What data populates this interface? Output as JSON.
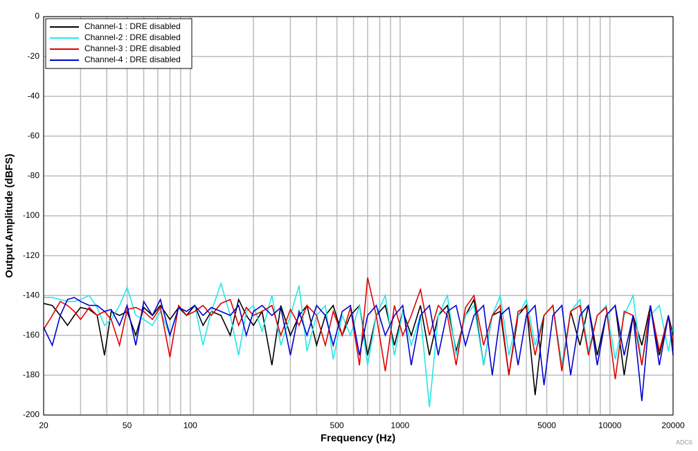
{
  "chart_data": {
    "type": "line",
    "xlabel": "Frequency (Hz)",
    "ylabel": "Output Amplitude (dBFS)",
    "footnote": "ADC6",
    "xscale": "log",
    "xlim": [
      20,
      20000
    ],
    "ylim": [
      -200,
      0
    ],
    "xticks": [
      20,
      50,
      100,
      500,
      1000,
      5000,
      10000,
      20000
    ],
    "xminor": [
      30,
      40,
      60,
      70,
      80,
      90,
      200,
      300,
      400,
      600,
      700,
      800,
      900,
      2000,
      3000,
      4000,
      6000,
      7000,
      8000,
      9000
    ],
    "yticks": [
      0,
      -20,
      -40,
      -60,
      -80,
      -100,
      -120,
      -140,
      -160,
      -180,
      -200
    ],
    "grid": true,
    "legend": "upper-left",
    "x": [
      20,
      22,
      24,
      26,
      28,
      30,
      33,
      36,
      39,
      42,
      46,
      50,
      55,
      60,
      66,
      72,
      80,
      88,
      96,
      105,
      115,
      126,
      140,
      155,
      170,
      185,
      200,
      220,
      245,
      270,
      300,
      330,
      360,
      400,
      440,
      480,
      530,
      580,
      640,
      700,
      770,
      850,
      940,
      1030,
      1130,
      1250,
      1380,
      1520,
      1680,
      1850,
      2050,
      2250,
      2500,
      2750,
      3000,
      3300,
      3650,
      4000,
      4400,
      4850,
      5350,
      5900,
      6500,
      7200,
      7900,
      8700,
      9600,
      10600,
      11700,
      12900,
      14200,
      15600,
      17200,
      19000,
      20000
    ],
    "series": [
      {
        "name": "Channel-1 : DRE disabled",
        "color": "#000000",
        "values": [
          -144,
          -145,
          -150,
          -155,
          -150,
          -146,
          -147,
          -150,
          -170,
          -148,
          -150,
          -148,
          -160,
          -146,
          -150,
          -145,
          -152,
          -146,
          -150,
          -145,
          -155,
          -148,
          -150,
          -160,
          -142,
          -150,
          -155,
          -148,
          -175,
          -145,
          -160,
          -150,
          -145,
          -165,
          -150,
          -145,
          -160,
          -150,
          -145,
          -170,
          -150,
          -145,
          -165,
          -148,
          -160,
          -145,
          -170,
          -150,
          -145,
          -168,
          -150,
          -142,
          -175,
          -150,
          -148,
          -180,
          -150,
          -145,
          -190,
          -150,
          -145,
          -175,
          -148,
          -165,
          -145,
          -170,
          -150,
          -145,
          -180,
          -150,
          -165,
          -145,
          -170,
          -150,
          -160
        ]
      },
      {
        "name": "Channel-2 : DRE disabled",
        "color": "#22e8e8",
        "values": [
          -141,
          -141,
          -142,
          -143,
          -143,
          -142,
          -140,
          -146,
          -155,
          -152,
          -145,
          -136,
          -150,
          -152,
          -155,
          -148,
          -160,
          -146,
          -148,
          -145,
          -165,
          -148,
          -134,
          -150,
          -170,
          -148,
          -145,
          -158,
          -140,
          -165,
          -150,
          -135,
          -168,
          -150,
          -145,
          -172,
          -150,
          -160,
          -145,
          -175,
          -150,
          -140,
          -170,
          -148,
          -165,
          -150,
          -196,
          -150,
          -140,
          -170,
          -150,
          -145,
          -175,
          -150,
          -140,
          -170,
          -150,
          -142,
          -165,
          -150,
          -145,
          -175,
          -148,
          -142,
          -168,
          -150,
          -145,
          -172,
          -150,
          -140,
          -175,
          -150,
          -145,
          -168,
          -155
        ]
      },
      {
        "name": "Channel-3 : DRE disabled",
        "color": "#e00000",
        "values": [
          -157,
          -150,
          -143,
          -145,
          -148,
          -152,
          -146,
          -150,
          -148,
          -152,
          -165,
          -147,
          -146,
          -148,
          -152,
          -146,
          -171,
          -145,
          -150,
          -148,
          -145,
          -150,
          -144,
          -142,
          -155,
          -146,
          -150,
          -148,
          -145,
          -160,
          -147,
          -155,
          -145,
          -150,
          -165,
          -148,
          -160,
          -146,
          -175,
          -131,
          -150,
          -178,
          -145,
          -160,
          -150,
          -137,
          -160,
          -145,
          -150,
          -175,
          -146,
          -140,
          -165,
          -150,
          -145,
          -180,
          -148,
          -146,
          -170,
          -150,
          -145,
          -178,
          -148,
          -145,
          -170,
          -150,
          -146,
          -182,
          -148,
          -150,
          -175,
          -145,
          -168,
          -150,
          -165
        ]
      },
      {
        "name": "Channel-4 : DRE disabled",
        "color": "#0000d0",
        "values": [
          -156,
          -165,
          -150,
          -142,
          -141,
          -143,
          -145,
          -145,
          -148,
          -147,
          -155,
          -145,
          -165,
          -143,
          -150,
          -142,
          -160,
          -146,
          -148,
          -145,
          -150,
          -146,
          -148,
          -150,
          -145,
          -160,
          -148,
          -145,
          -150,
          -146,
          -170,
          -148,
          -160,
          -145,
          -150,
          -165,
          -148,
          -145,
          -170,
          -150,
          -145,
          -160,
          -150,
          -145,
          -175,
          -150,
          -145,
          -170,
          -148,
          -145,
          -165,
          -150,
          -145,
          -180,
          -150,
          -146,
          -175,
          -150,
          -145,
          -185,
          -150,
          -145,
          -180,
          -150,
          -145,
          -175,
          -150,
          -145,
          -170,
          -150,
          -193,
          -145,
          -175,
          -150,
          -170
        ]
      }
    ]
  }
}
